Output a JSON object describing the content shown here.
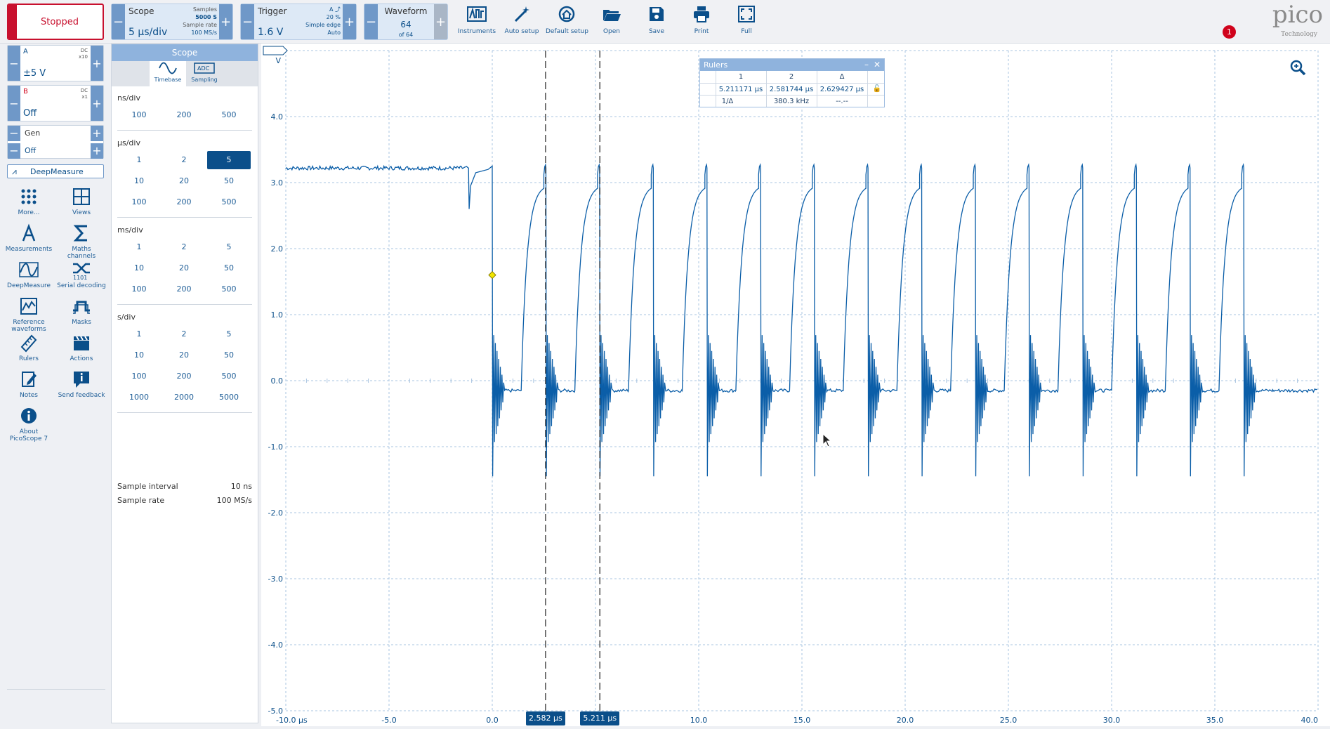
{
  "run_state": "Stopped",
  "scope": {
    "label": "Scope",
    "timebase": "5 µs/div",
    "samples_label": "Samples",
    "samples": "5000 S",
    "rate_label": "Sample rate",
    "rate": "100 MS/s"
  },
  "trigger": {
    "label": "Trigger",
    "level": "1.6 V",
    "source": "A",
    "position": "20 %",
    "type": "Simple edge",
    "mode": "Auto"
  },
  "waveform": {
    "label": "Waveform",
    "index": "64",
    "of": "of 64"
  },
  "toolbar": [
    "Instruments",
    "Auto setup",
    "Default setup",
    "Open",
    "Save",
    "Print",
    "Full"
  ],
  "notification_count": "1",
  "brand": {
    "logo": "pico",
    "sub": "Technology"
  },
  "channels": {
    "a": {
      "name": "A",
      "coupling": "DC",
      "probe": "x10",
      "range": "±5 V"
    },
    "b": {
      "name": "B",
      "coupling": "DC",
      "probe": "x1",
      "range": "Off"
    },
    "gen": {
      "name": "Gen",
      "state": "Off"
    }
  },
  "deepmeasure_button": "DeepMeasure",
  "side_tools": [
    {
      "l1": "More...",
      "l2": ""
    },
    {
      "l1": "Views",
      "l2": ""
    },
    {
      "l1": "Measurements",
      "l2": ""
    },
    {
      "l1": "Maths channels",
      "l2": ""
    },
    {
      "l1": "DeepMeasure",
      "l2": ""
    },
    {
      "l1": "Serial decoding",
      "l2": ""
    },
    {
      "l1": "Reference",
      "l2": "waveforms"
    },
    {
      "l1": "Masks",
      "l2": ""
    },
    {
      "l1": "Rulers",
      "l2": ""
    },
    {
      "l1": "Actions",
      "l2": ""
    },
    {
      "l1": "Notes",
      "l2": ""
    },
    {
      "l1": "Send feedback",
      "l2": ""
    },
    {
      "l1": "About",
      "l2": "PicoScope 7"
    }
  ],
  "scope_panel": {
    "title": "Scope",
    "tabs": [
      "Timebase",
      "Sampling"
    ],
    "sections": [
      {
        "name": "ns/div",
        "rows": [
          [
            "100",
            "200",
            "500"
          ]
        ]
      },
      {
        "name": "µs/div",
        "rows": [
          [
            "1",
            "2",
            "5"
          ],
          [
            "10",
            "20",
            "50"
          ],
          [
            "100",
            "200",
            "500"
          ]
        ]
      },
      {
        "name": "ms/div",
        "rows": [
          [
            "1",
            "2",
            "5"
          ],
          [
            "10",
            "20",
            "50"
          ],
          [
            "100",
            "200",
            "500"
          ]
        ]
      },
      {
        "name": "s/div",
        "rows": [
          [
            "1",
            "2",
            "5"
          ],
          [
            "10",
            "20",
            "50"
          ],
          [
            "100",
            "200",
            "500"
          ],
          [
            "1000",
            "2000",
            "5000"
          ]
        ]
      }
    ],
    "selected": "µs/div:5",
    "sample_interval_label": "Sample interval",
    "sample_interval": "10 ns",
    "sample_rate_label": "Sample rate",
    "sample_rate": "100 MS/s"
  },
  "rulers": {
    "title": "Rulers",
    "headers": [
      "1",
      "2",
      "Δ"
    ],
    "row1": [
      "5.211171 µs",
      "2.581744 µs",
      "2.629427 µs"
    ],
    "row2_label": "1/Δ",
    "row2": [
      "380.3 kHz",
      "--.--"
    ]
  },
  "chart_data": {
    "type": "line",
    "x_unit": "µs",
    "y_unit": "V",
    "xlim": [
      -10,
      40
    ],
    "ylim": [
      -5,
      5
    ],
    "x_ticks": [
      "-10.0 µs",
      "-5.0",
      "0.0",
      "5.0",
      "10.0",
      "15.0",
      "20.0",
      "25.0",
      "30.0",
      "35.0",
      "40.0"
    ],
    "y_ticks": [
      "5.0",
      "4.0",
      "3.0",
      "2.0",
      "1.0",
      "0.0",
      "-1.0",
      "-2.0",
      "-3.0",
      "-4.0",
      "-5.0"
    ],
    "grid": true,
    "trace_color": "#0b5ea8",
    "pre_trigger_level": 3.22,
    "high_level": 3.22,
    "low_level": -0.15,
    "overshoot": -1.45,
    "period": 2.6,
    "first_edge": 0.0,
    "last_edge": 38.9,
    "trigger_marker": {
      "x": 0.0,
      "y": 1.6
    },
    "ruler_markers": [
      {
        "x": 2.582,
        "label": "2.582 µs"
      },
      {
        "x": 5.211,
        "label": "5.211 µs"
      }
    ]
  }
}
